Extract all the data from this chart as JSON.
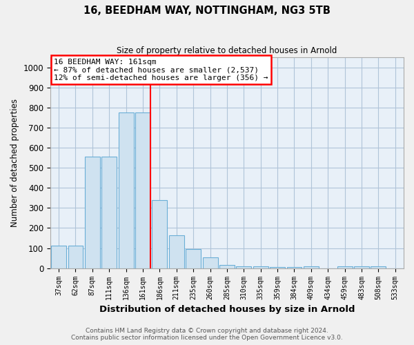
{
  "title": "16, BEEDHAM WAY, NOTTINGHAM, NG3 5TB",
  "subtitle": "Size of property relative to detached houses in Arnold",
  "xlabel": "Distribution of detached houses by size in Arnold",
  "ylabel": "Number of detached properties",
  "categories": [
    "37sqm",
    "62sqm",
    "87sqm",
    "111sqm",
    "136sqm",
    "161sqm",
    "186sqm",
    "211sqm",
    "235sqm",
    "260sqm",
    "285sqm",
    "310sqm",
    "335sqm",
    "359sqm",
    "384sqm",
    "409sqm",
    "434sqm",
    "459sqm",
    "483sqm",
    "508sqm",
    "533sqm"
  ],
  "values": [
    113,
    113,
    555,
    555,
    775,
    775,
    340,
    165,
    95,
    55,
    15,
    10,
    8,
    5,
    5,
    8,
    0,
    8,
    8,
    8,
    0
  ],
  "bar_color": "#cfe2f0",
  "bar_edge_color": "#6aaed6",
  "redline_index": 5,
  "annotation_line1": "16 BEEDHAM WAY: 161sqm",
  "annotation_line2": "← 87% of detached houses are smaller (2,537)",
  "annotation_line3": "12% of semi-detached houses are larger (356) →",
  "annotation_box_color": "white",
  "annotation_box_edge_color": "red",
  "redline_color": "red",
  "ylim": [
    0,
    1050
  ],
  "yticks": [
    0,
    100,
    200,
    300,
    400,
    500,
    600,
    700,
    800,
    900,
    1000
  ],
  "footnote1": "Contains HM Land Registry data © Crown copyright and database right 2024.",
  "footnote2": "Contains public sector information licensed under the Open Government Licence v3.0.",
  "background_color": "#f0f0f0",
  "plot_bg_color": "#e8f0f8",
  "grid_color": "#b0c4d8"
}
